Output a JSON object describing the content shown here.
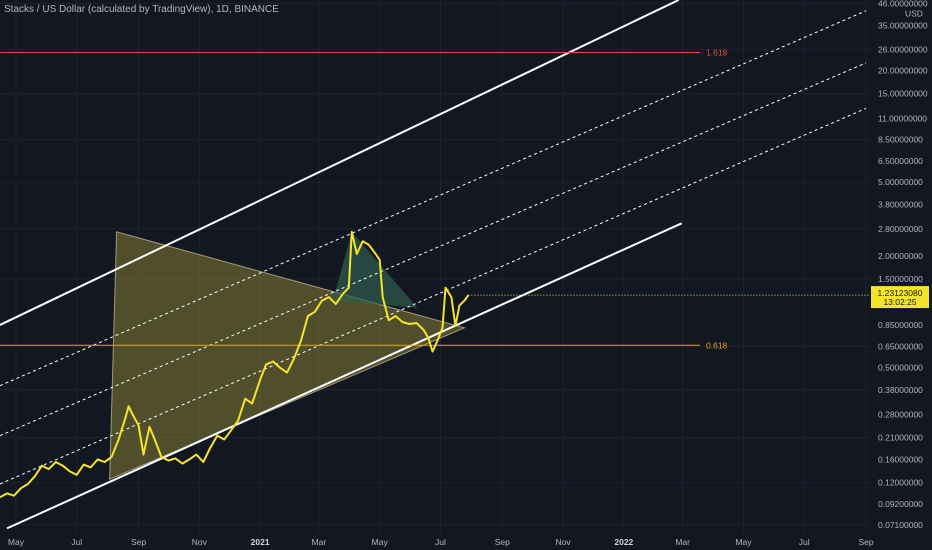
{
  "header": {
    "title": "Stacks / US Dollar (calculated by TradingView), 1D, BINANCE"
  },
  "axis": {
    "currency": "USD"
  },
  "price_tag": {
    "price": "1.23123080",
    "countdown": "13:02:25",
    "color": "#f5e52a"
  },
  "colors": {
    "background": "#131722",
    "price_line": "#f5e52a",
    "channel": "#ffffff",
    "fib_high": "#e84c3d",
    "fib_low": "#e6a31c",
    "triangle_big": "#b7a93b",
    "triangle_small": "#2f5e4e"
  },
  "chart_data": {
    "type": "line",
    "title": "Stacks / US Dollar (calculated by TradingView), 1D, BINANCE",
    "yscale": "log",
    "ylim": [
      0.065,
      48
    ],
    "y_ticks": [
      "46.00000000",
      "35.00000000",
      "26.00000000",
      "20.00000000",
      "15.00000000",
      "11.00000000",
      "8.50000000",
      "6.50000000",
      "5.00000000",
      "3.80000000",
      "2.80000000",
      "2.00000000",
      "1.50000000",
      "0.85000000",
      "0.65000000",
      "0.50000000",
      "0.38000000",
      "0.28000000",
      "0.21000000",
      "0.16000000",
      "0.12000000",
      "0.09200000",
      "0.07100000"
    ],
    "y_tick_values": [
      46,
      35,
      26,
      20,
      15,
      11,
      8.5,
      6.5,
      5,
      3.8,
      2.8,
      2,
      1.5,
      0.85,
      0.65,
      0.5,
      0.38,
      0.28,
      0.21,
      0.16,
      0.12,
      0.092,
      0.071
    ],
    "x_ticks": [
      "May",
      "Jul",
      "Sep",
      "Nov",
      "2021",
      "Mar",
      "May",
      "Jul",
      "Sep",
      "Nov",
      "2022",
      "Mar",
      "May",
      "Jul",
      "Sep"
    ],
    "x_tick_dates": [
      "2020-05-01",
      "2020-07-01",
      "2020-09-01",
      "2020-11-01",
      "2021-01-01",
      "2021-03-01",
      "2021-05-01",
      "2021-07-01",
      "2021-09-01",
      "2021-11-01",
      "2022-01-01",
      "2022-03-01",
      "2022-05-01",
      "2022-07-01",
      "2022-09-01"
    ],
    "xlim": [
      "2020-04-15",
      "2022-09-05"
    ],
    "grid": true,
    "series": [
      {
        "values": [
          [
            "2020-04-15",
            0.1
          ],
          [
            "2020-04-22",
            0.105
          ],
          [
            "2020-04-29",
            0.102
          ],
          [
            "2020-05-06",
            0.112
          ],
          [
            "2020-05-13",
            0.118
          ],
          [
            "2020-05-20",
            0.13
          ],
          [
            "2020-05-27",
            0.148
          ],
          [
            "2020-06-03",
            0.142
          ],
          [
            "2020-06-10",
            0.155
          ],
          [
            "2020-06-17",
            0.148
          ],
          [
            "2020-06-24",
            0.138
          ],
          [
            "2020-07-01",
            0.132
          ],
          [
            "2020-07-08",
            0.15
          ],
          [
            "2020-07-15",
            0.145
          ],
          [
            "2020-07-22",
            0.16
          ],
          [
            "2020-07-29",
            0.155
          ],
          [
            "2020-08-05",
            0.165
          ],
          [
            "2020-08-12",
            0.205
          ],
          [
            "2020-08-19",
            0.27
          ],
          [
            "2020-08-22",
            0.31
          ],
          [
            "2020-08-26",
            0.28
          ],
          [
            "2020-09-01",
            0.245
          ],
          [
            "2020-09-06",
            0.17
          ],
          [
            "2020-09-12",
            0.24
          ],
          [
            "2020-09-18",
            0.2
          ],
          [
            "2020-09-24",
            0.165
          ],
          [
            "2020-10-01",
            0.158
          ],
          [
            "2020-10-08",
            0.162
          ],
          [
            "2020-10-15",
            0.152
          ],
          [
            "2020-10-22",
            0.16
          ],
          [
            "2020-10-29",
            0.17
          ],
          [
            "2020-11-05",
            0.155
          ],
          [
            "2020-11-12",
            0.185
          ],
          [
            "2020-11-19",
            0.215
          ],
          [
            "2020-11-26",
            0.205
          ],
          [
            "2020-12-03",
            0.23
          ],
          [
            "2020-12-10",
            0.26
          ],
          [
            "2020-12-17",
            0.34
          ],
          [
            "2020-12-24",
            0.32
          ],
          [
            "2021-01-01",
            0.43
          ],
          [
            "2021-01-07",
            0.52
          ],
          [
            "2021-01-14",
            0.54
          ],
          [
            "2021-01-21",
            0.5
          ],
          [
            "2021-01-28",
            0.47
          ],
          [
            "2021-02-04",
            0.56
          ],
          [
            "2021-02-11",
            0.7
          ],
          [
            "2021-02-18",
            0.95
          ],
          [
            "2021-02-25",
            1.0
          ],
          [
            "2021-03-04",
            1.15
          ],
          [
            "2021-03-11",
            1.2
          ],
          [
            "2021-03-18",
            1.1
          ],
          [
            "2021-03-25",
            1.25
          ],
          [
            "2021-03-31",
            1.35
          ],
          [
            "2021-04-03",
            2.7
          ],
          [
            "2021-04-08",
            2.05
          ],
          [
            "2021-04-14",
            2.4
          ],
          [
            "2021-04-20",
            2.3
          ],
          [
            "2021-04-27",
            2.05
          ],
          [
            "2021-05-01",
            1.9
          ],
          [
            "2021-05-04",
            1.2
          ],
          [
            "2021-05-10",
            0.9
          ],
          [
            "2021-05-17",
            0.95
          ],
          [
            "2021-05-24",
            0.88
          ],
          [
            "2021-05-31",
            0.86
          ],
          [
            "2021-06-07",
            0.87
          ],
          [
            "2021-06-14",
            0.8
          ],
          [
            "2021-06-19",
            0.72
          ],
          [
            "2021-06-23",
            0.61
          ],
          [
            "2021-06-28",
            0.7
          ],
          [
            "2021-07-03",
            0.82
          ],
          [
            "2021-07-06",
            1.35
          ],
          [
            "2021-07-12",
            1.2
          ],
          [
            "2021-07-16",
            0.84
          ],
          [
            "2021-07-20",
            1.08
          ],
          [
            "2021-07-25",
            1.15
          ],
          [
            "2021-07-29",
            1.231
          ]
        ]
      }
    ],
    "annotations": [
      "1.618",
      "0.618"
    ],
    "fib_levels": [
      {
        "label": "1.618",
        "price": 25.0,
        "color": "#e84c3d"
      },
      {
        "label": "0.618",
        "price": 0.66,
        "color": "#e6a31c"
      }
    ]
  }
}
